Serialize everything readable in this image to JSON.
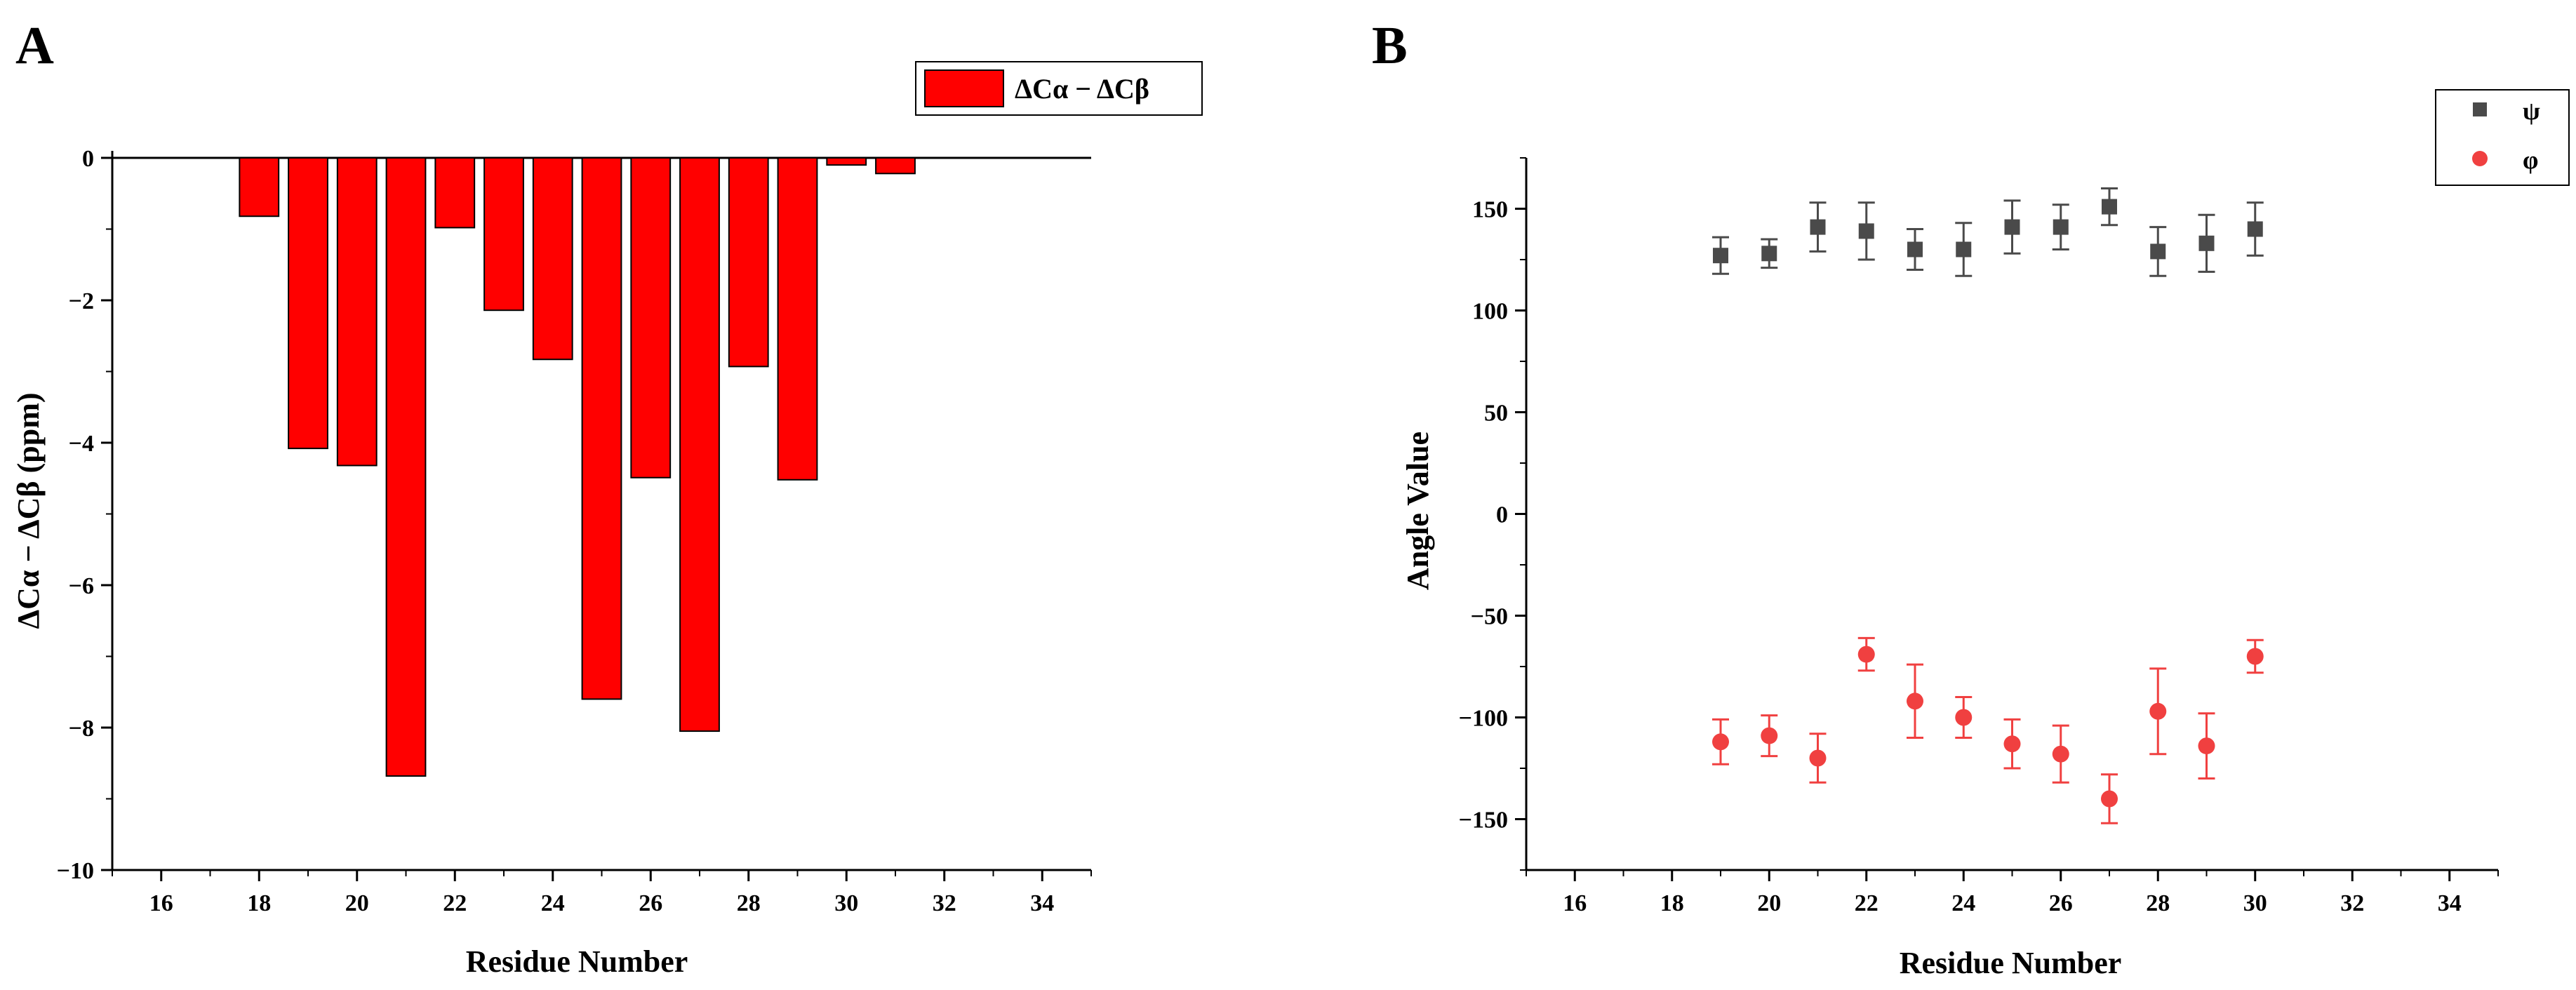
{
  "chart_data": [
    {
      "panel": "A",
      "type": "bar",
      "xlabel": "Residue Number",
      "ylabel": "ΔCα − ΔCβ (ppm)",
      "xlim": [
        15,
        35
      ],
      "ylim": [
        -10,
        0
      ],
      "xticks": [
        16,
        18,
        20,
        22,
        24,
        26,
        28,
        30,
        32,
        34
      ],
      "yticks": [
        0,
        -2,
        -4,
        -6,
        -8,
        -10
      ],
      "legend": "ΔCα − ΔCβ",
      "color": "#ff0000",
      "x": [
        18,
        19,
        20,
        21,
        22,
        23,
        24,
        25,
        26,
        27,
        28,
        29,
        30,
        31
      ],
      "values": [
        -0.82,
        -4.08,
        -4.32,
        -8.68,
        -0.98,
        -2.14,
        -2.83,
        -7.6,
        -4.49,
        -8.05,
        -2.93,
        -4.52,
        -0.1,
        -0.22
      ]
    },
    {
      "panel": "B",
      "type": "scatter",
      "xlabel": "Residue Number",
      "ylabel": "Angle Value",
      "xlim": [
        15,
        35
      ],
      "ylim": [
        -175,
        175
      ],
      "xticks": [
        16,
        18,
        20,
        22,
        24,
        26,
        28,
        30,
        32,
        34
      ],
      "yticks": [
        150,
        100,
        50,
        0,
        -50,
        -100,
        -150
      ],
      "series": [
        {
          "name": "ψ",
          "marker": "square",
          "color": "#4a4a4a",
          "x": [
            19,
            20,
            21,
            22,
            23,
            24,
            25,
            26,
            27,
            28,
            29,
            30
          ],
          "values": [
            127,
            128,
            141,
            139,
            130,
            130,
            141,
            141,
            151,
            129,
            133,
            140
          ],
          "errors": [
            9,
            7,
            12,
            14,
            10,
            13,
            13,
            11,
            9,
            12,
            14,
            13
          ]
        },
        {
          "name": "φ",
          "marker": "circle",
          "color": "#f04040",
          "x": [
            19,
            20,
            21,
            22,
            23,
            24,
            25,
            26,
            27,
            28,
            29,
            30
          ],
          "values": [
            -112,
            -109,
            -120,
            -69,
            -92,
            -100,
            -113,
            -118,
            -140,
            -97,
            -114,
            -70
          ],
          "errors": [
            11,
            10,
            12,
            8,
            18,
            10,
            12,
            14,
            12,
            21,
            16,
            8
          ]
        }
      ]
    }
  ]
}
